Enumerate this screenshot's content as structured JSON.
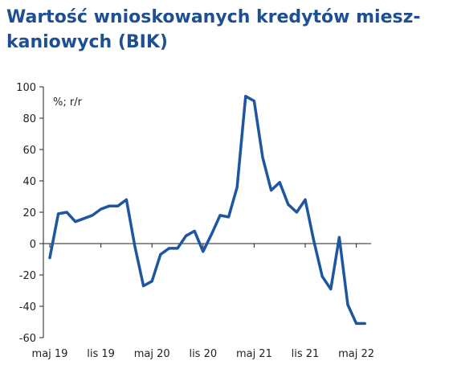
{
  "title_lines": [
    "Wartość wnioskowanych kredytów miesz-",
    "kaniowych (BIK)"
  ],
  "colors": {
    "title": "#1d4f91",
    "line": "#1e56a0",
    "axis": "#222222"
  },
  "chart_data": {
    "type": "line",
    "title": "Wartość wnioskowanych kredytów mieszkaniowych (BIK)",
    "unit_label": "%; r/r",
    "ylim": [
      -60,
      100
    ],
    "y_ticks": [
      100,
      80,
      60,
      40,
      20,
      0,
      -20,
      -40,
      -60
    ],
    "x_tick_labels": [
      "maj 19",
      "lis 19",
      "maj 20",
      "lis 20",
      "maj 21",
      "lis 21",
      "maj 22"
    ],
    "x_tick_positions": [
      0,
      6,
      12,
      18,
      24,
      30,
      36
    ],
    "grid": false,
    "legend": "none",
    "series": [
      {
        "x": [
          0,
          1,
          2,
          3,
          4,
          5,
          6,
          7,
          8,
          9,
          10,
          11,
          12,
          13,
          14,
          15,
          16,
          17,
          18,
          19,
          20,
          21,
          22,
          23,
          24,
          25,
          26,
          27,
          28,
          29,
          30,
          31,
          32,
          33,
          34,
          35,
          36,
          37
        ],
        "values": [
          -9,
          19,
          20,
          14,
          16,
          18,
          22,
          24,
          24,
          28,
          -2,
          -27,
          -24,
          -7,
          -3,
          -3,
          5,
          8,
          -5,
          6,
          18,
          17,
          36,
          94,
          91,
          55,
          34,
          39,
          25,
          20,
          28,
          2,
          -21,
          -29,
          4,
          -39,
          -51,
          -51
        ]
      }
    ]
  }
}
